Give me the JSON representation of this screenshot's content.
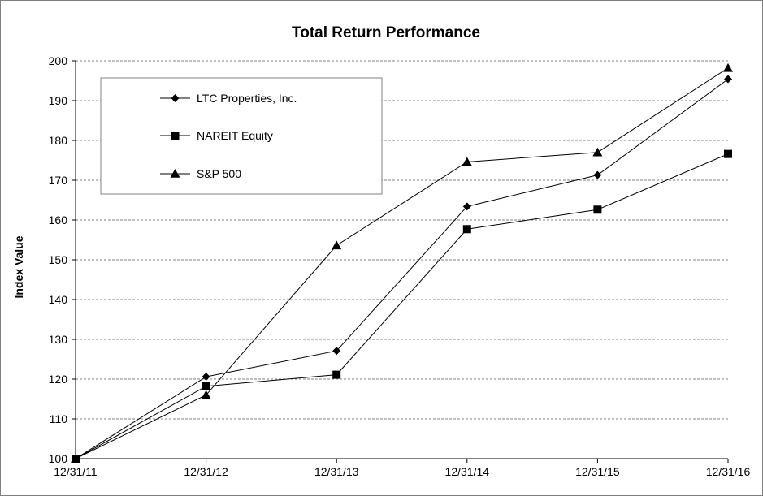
{
  "chart_data": {
    "type": "line",
    "title": "Total Return Performance",
    "xlabel": "",
    "ylabel": "Index Value",
    "x": [
      "12/31/11",
      "12/31/12",
      "12/31/13",
      "12/31/14",
      "12/31/15",
      "12/31/16"
    ],
    "ylim": [
      100,
      200
    ],
    "yticks": [
      100,
      110,
      120,
      130,
      140,
      150,
      160,
      170,
      180,
      190,
      200
    ],
    "grid": "horizontal-dashed",
    "legend_position": "top-left",
    "series": [
      {
        "name": "LTC Properties, Inc.",
        "marker": "diamond",
        "values": [
          100,
          120.6,
          127.1,
          163.4,
          171.3,
          195.4
        ]
      },
      {
        "name": "NAREIT Equity",
        "marker": "square",
        "values": [
          100,
          118.2,
          121.1,
          157.7,
          162.6,
          176.6
        ]
      },
      {
        "name": "S&P 500",
        "marker": "triangle",
        "values": [
          100,
          116.0,
          153.6,
          174.6,
          177.0,
          198.2
        ]
      }
    ],
    "colors": {
      "line": "#000000",
      "grid": "#808080",
      "axis": "#000000"
    }
  }
}
